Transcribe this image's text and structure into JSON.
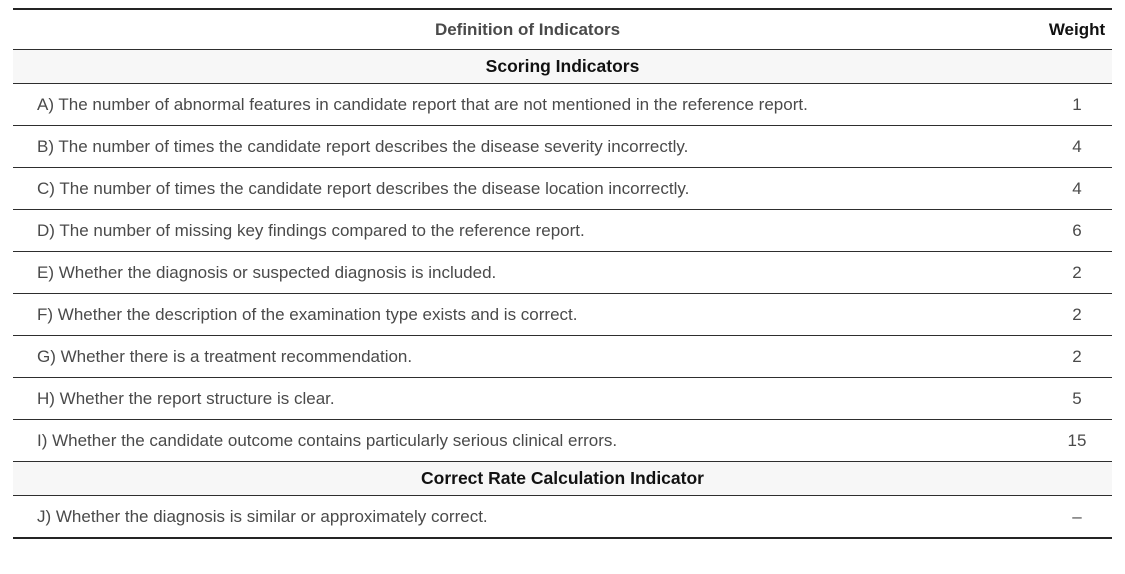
{
  "table": {
    "columns": {
      "definition": "Definition of Indicators",
      "weight": "Weight"
    },
    "sections": [
      {
        "title": "Scoring Indicators",
        "rows": [
          {
            "definition": "A) The number of abnormal features in candidate report that are not mentioned in the reference report.",
            "weight": "1"
          },
          {
            "definition": "B) The number of times the candidate report describes the disease severity incorrectly.",
            "weight": "4"
          },
          {
            "definition": "C) The number of times the candidate report describes the disease location incorrectly.",
            "weight": "4"
          },
          {
            "definition": "D) The number of missing key findings compared to the reference report.",
            "weight": "6"
          },
          {
            "definition": "E) Whether the diagnosis or suspected diagnosis is included.",
            "weight": "2"
          },
          {
            "definition": "F) Whether the description of the examination type exists and is correct.",
            "weight": "2"
          },
          {
            "definition": "G) Whether there is a treatment recommendation.",
            "weight": "2"
          },
          {
            "definition": "H) Whether the report structure is clear.",
            "weight": "5"
          },
          {
            "definition": "I) Whether the candidate outcome contains particularly serious clinical errors.",
            "weight": "15"
          }
        ]
      },
      {
        "title": "Correct Rate Calculation Indicator",
        "rows": [
          {
            "definition": "J) Whether the diagnosis is similar or approximately correct.",
            "weight": "–"
          }
        ]
      }
    ]
  },
  "colors": {
    "section_band_bg": "#f7f7f7",
    "rule": "#2e2e2e",
    "body_text": "#4a4a4a",
    "header_text": "#111111"
  }
}
